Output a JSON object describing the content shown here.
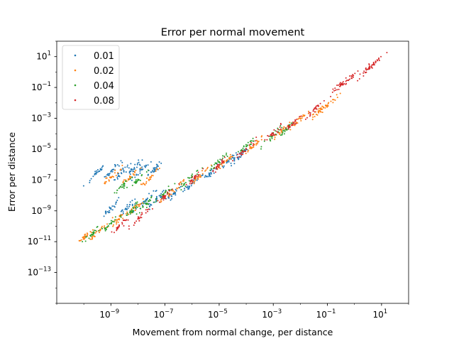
{
  "chart_data": {
    "type": "scatter",
    "title": "Error per normal movement",
    "xlabel": "Movement from normal change, per distance",
    "ylabel": "Error per distance",
    "xscale": "log",
    "yscale": "log",
    "xlim": [
      1e-11,
      100
    ],
    "ylim": [
      1e-15,
      100
    ],
    "xticks": [
      {
        "exp": -9,
        "value": 1e-09
      },
      {
        "exp": -7,
        "value": 1e-07
      },
      {
        "exp": -5,
        "value": 1e-05
      },
      {
        "exp": -3,
        "value": 0.001
      },
      {
        "exp": -1,
        "value": 0.1
      },
      {
        "exp": 1,
        "value": 10
      }
    ],
    "yticks": [
      {
        "exp": 1,
        "value": 10
      },
      {
        "exp": -1,
        "value": 0.1
      },
      {
        "exp": -3,
        "value": 0.001
      },
      {
        "exp": -5,
        "value": 1e-05
      },
      {
        "exp": -7,
        "value": 1e-07
      },
      {
        "exp": -9,
        "value": 1e-09
      },
      {
        "exp": -11,
        "value": 1e-11
      },
      {
        "exp": -13,
        "value": 1e-13
      }
    ],
    "grid": false,
    "legend": {
      "position": "top-left"
    },
    "series": [
      {
        "name": "0.01",
        "color": "#1f77b4",
        "x": [
          3e-10,
          1e-09,
          3e-09,
          6e-09,
          1.5e-08,
          4e-08,
          1e-09,
          5e-09,
          2e-08,
          5e-08,
          2e-07,
          1e-06,
          5e-06,
          2e-05,
          5e-05
        ],
        "y": [
          3e-07,
          3.5e-07,
          4e-07,
          4.5e-07,
          5e-07,
          5e-07,
          1.5e-09,
          2.5e-09,
          5e-09,
          6e-09,
          1.2e-08,
          6e-08,
          3e-07,
          1.5e-06,
          3e-06
        ]
      },
      {
        "name": "0.02",
        "color": "#ff7f0e",
        "x": [
          1e-10,
          4e-10,
          2e-09,
          8e-09,
          1e-09,
          5e-09,
          3e-08,
          2e-07,
          2e-06,
          2e-05,
          0.0002,
          0.002,
          0.01,
          0.05,
          0.1
        ],
        "y": [
          2e-11,
          6e-11,
          3e-10,
          1.5e-09,
          1.5e-07,
          1.5e-07,
          1.5e-07,
          2e-08,
          2e-07,
          2e-06,
          2e-05,
          0.00015,
          0.001,
          0.003,
          0.007
        ]
      },
      {
        "name": "0.04",
        "color": "#2ca02c",
        "x": [
          2e-10,
          1e-09,
          5e-09,
          2e-08,
          3e-09,
          1e-08,
          1e-07,
          1e-06,
          1e-05,
          0.0001,
          0.001,
          0.003
        ],
        "y": [
          3e-11,
          1.5e-10,
          8e-10,
          3e-09,
          5e-08,
          1e-07,
          1.5e-08,
          1.5e-07,
          1.5e-06,
          1.5e-05,
          8e-05,
          0.0002
        ]
      },
      {
        "name": "0.08",
        "color": "#d62728",
        "x": [
          2e-09,
          1e-08,
          1e-07,
          1e-06,
          1e-05,
          0.0001,
          0.001,
          0.005,
          0.03,
          0.3,
          0.6,
          3,
          5
        ],
        "y": [
          1e-10,
          3e-10,
          8e-09,
          1e-07,
          1e-06,
          1e-05,
          0.0001,
          0.0004,
          0.003,
          0.15,
          0.3,
          1.5,
          3
        ]
      }
    ]
  }
}
